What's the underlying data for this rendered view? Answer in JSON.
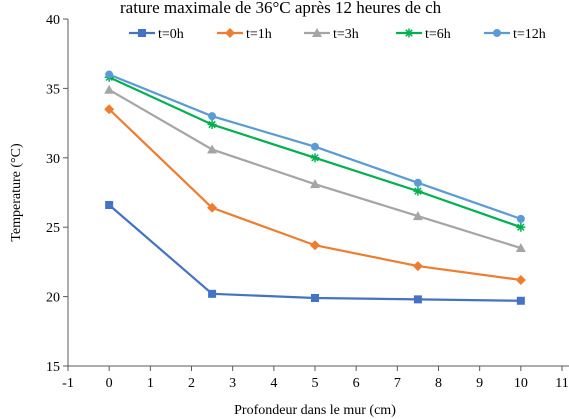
{
  "caption_fragment": "rature maximale de 36°C après 12 heures de ch",
  "chart_data": {
    "type": "line",
    "xlabel": "Profondeur dans le mur (cm)",
    "ylabel": "Temperature (°C)",
    "xlim": [
      -1,
      11
    ],
    "ylim": [
      15,
      40
    ],
    "xticks": [
      -1,
      0,
      1,
      2,
      3,
      4,
      5,
      6,
      7,
      8,
      9,
      10,
      11
    ],
    "xtick_labels": [
      "-1",
      "0",
      "1",
      "2",
      "3",
      "4",
      "5",
      "6",
      "7",
      "8",
      "9",
      "10",
      "11"
    ],
    "yticks": [
      15,
      20,
      25,
      30,
      35,
      40
    ],
    "ytick_labels": [
      "15",
      "20",
      "25",
      "30",
      "35",
      "40"
    ],
    "grid": false,
    "legend_position": "top",
    "x": [
      0,
      2.5,
      5,
      7.5,
      10
    ],
    "series": [
      {
        "name": "t=0h",
        "color": "#4472c4",
        "marker": "square",
        "values": [
          26.6,
          20.2,
          19.9,
          19.8,
          19.7
        ]
      },
      {
        "name": "t=1h",
        "color": "#ed7d31",
        "marker": "diamond",
        "values": [
          33.5,
          26.4,
          23.7,
          22.2,
          21.2
        ]
      },
      {
        "name": "t=3h",
        "color": "#a5a5a5",
        "marker": "triangle",
        "values": [
          34.9,
          30.6,
          28.1,
          25.8,
          23.5
        ]
      },
      {
        "name": "t=6h",
        "color": "#00b050",
        "marker": "asterisk",
        "values": [
          35.8,
          32.4,
          30.0,
          27.6,
          25.0
        ]
      },
      {
        "name": "t=12h",
        "color": "#5b9bd5",
        "marker": "circle",
        "values": [
          36.0,
          33.0,
          30.8,
          28.2,
          25.6
        ]
      }
    ]
  }
}
